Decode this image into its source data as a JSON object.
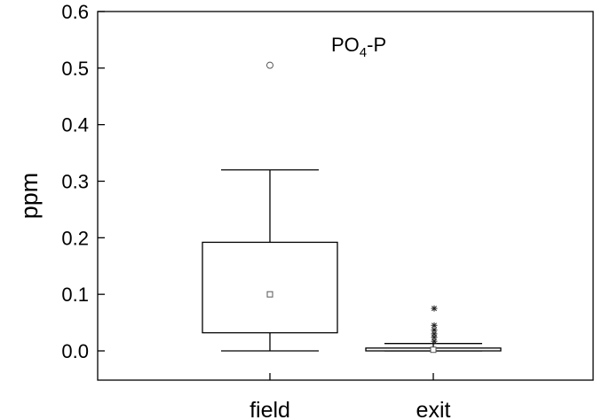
{
  "chart_data": {
    "type": "box",
    "title": "",
    "xlabel": "",
    "ylabel": "ppm",
    "ylim": [
      -0.05,
      0.6
    ],
    "yticks": [
      "0.0",
      "0.1",
      "0.2",
      "0.3",
      "0.4",
      "0.5",
      "0.6"
    ],
    "ytick_values": [
      0.0,
      0.1,
      0.2,
      0.3,
      0.4,
      0.5,
      0.6
    ],
    "categories": [
      "field",
      "exit"
    ],
    "annotation": {
      "base": "PO",
      "sub": "4",
      "rest": "-P"
    },
    "grid": false,
    "boxes": [
      {
        "category": "field",
        "whisker_low": 0.0,
        "q1": 0.032,
        "q3": 0.192,
        "whisker_high": 0.32,
        "mean": 0.1,
        "outliers": [
          0.505
        ],
        "extremes": []
      },
      {
        "category": "exit",
        "whisker_low": 0.0,
        "q1": 0.0,
        "q3": 0.005,
        "whisker_high": 0.013,
        "mean": 0.002,
        "outliers": [],
        "extremes": [
          0.017,
          0.024,
          0.03,
          0.037,
          0.045,
          0.075
        ]
      }
    ]
  }
}
